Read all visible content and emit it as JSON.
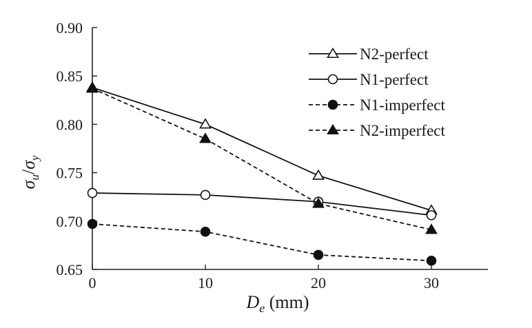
{
  "chart_data": {
    "type": "line",
    "xlabel": {
      "main": "D",
      "sub": "e",
      "unit": " (mm)"
    },
    "ylabel": {
      "num": "σ",
      "num_sub": "u",
      "sep": "/",
      "den": "σ",
      "den_sub": "y"
    },
    "xlim": [
      0,
      35
    ],
    "ylim": [
      0.65,
      0.9
    ],
    "xticks": [
      0,
      10,
      20,
      30
    ],
    "xtick_labels": [
      "0",
      "10",
      "20",
      "30"
    ],
    "yticks": [
      0.65,
      0.7,
      0.75,
      0.8,
      0.85,
      0.9
    ],
    "ytick_labels": [
      "0.65",
      "0.70",
      "0.75",
      "0.80",
      "0.85",
      "0.90"
    ],
    "grid": false,
    "legend_position": "top-right",
    "x": [
      0,
      10,
      20,
      30
    ],
    "series": [
      {
        "name": "N2-perfect",
        "values": [
          0.838,
          0.8,
          0.747,
          0.711
        ],
        "marker": "triangle-open",
        "dash": "solid"
      },
      {
        "name": "N1-perfect",
        "values": [
          0.729,
          0.727,
          0.72,
          0.706
        ],
        "marker": "circle-open",
        "dash": "solid"
      },
      {
        "name": "N1-imperfect",
        "values": [
          0.697,
          0.689,
          0.665,
          0.659
        ],
        "marker": "circle-filled",
        "dash": "dashed"
      },
      {
        "name": "N2-imperfect",
        "values": [
          0.837,
          0.785,
          0.718,
          0.691
        ],
        "marker": "triangle-filled",
        "dash": "dashed"
      }
    ]
  }
}
